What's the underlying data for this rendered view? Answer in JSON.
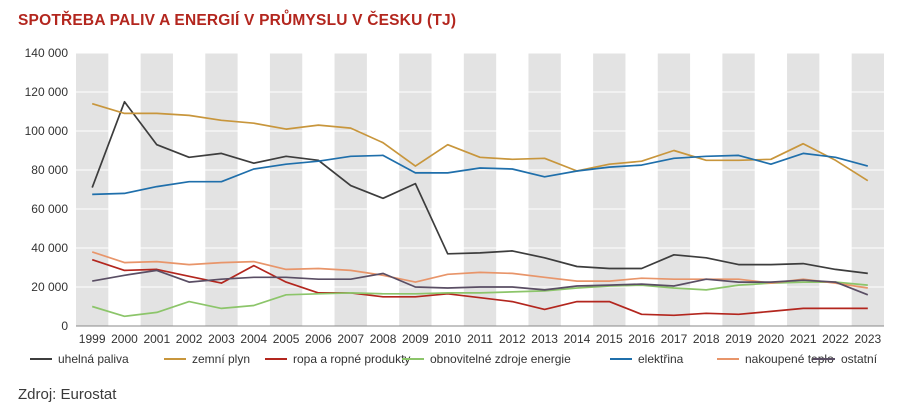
{
  "chart_data": {
    "type": "line",
    "title": "SPOTŘEBA PALIV A ENERGIÍ V PRŮMYSLU V ČESKU (TJ)",
    "xlabel": "",
    "ylabel": "",
    "ylim": [
      0,
      140000
    ],
    "y_ticks": [
      0,
      20000,
      40000,
      60000,
      80000,
      100000,
      120000,
      140000
    ],
    "y_tick_labels": [
      "0",
      "20 000",
      "40 000",
      "60 000",
      "80 000",
      "100 000",
      "120 000",
      "140 000"
    ],
    "categories": [
      "1999",
      "2000",
      "2001",
      "2002",
      "2003",
      "2004",
      "2005",
      "2006",
      "2007",
      "2008",
      "2009",
      "2010",
      "2011",
      "2012",
      "2013",
      "2014",
      "2015",
      "2016",
      "2017",
      "2018",
      "2019",
      "2020",
      "2021",
      "2022",
      "2023"
    ],
    "legend_position": "bottom",
    "background": "alternating gray vertical bands per year",
    "series": [
      {
        "name": "uhelná paliva",
        "color": "#3d3d3d",
        "values": [
          71000,
          115000,
          93000,
          86500,
          88500,
          83500,
          87000,
          85000,
          72000,
          65500,
          73000,
          37000,
          37500,
          38500,
          35000,
          30500,
          29500,
          29500,
          36500,
          35000,
          31500,
          31500,
          32000,
          29000,
          27000
        ]
      },
      {
        "name": "zemní plyn",
        "color": "#c8963c",
        "values": [
          114000,
          109000,
          109000,
          108000,
          105500,
          104000,
          101000,
          103000,
          101500,
          94000,
          82000,
          93000,
          86500,
          85500,
          86000,
          79500,
          83000,
          84500,
          90000,
          85000,
          85000,
          85500,
          93500,
          85000,
          74500
        ]
      },
      {
        "name": "ropa a ropné produkty",
        "color": "#b3261e",
        "values": [
          34000,
          28500,
          29000,
          25500,
          22000,
          31000,
          22500,
          17000,
          17000,
          15000,
          15000,
          16500,
          14500,
          12500,
          8500,
          12500,
          12500,
          6000,
          5500,
          6500,
          6000,
          7500,
          9000,
          9000,
          9000
        ]
      },
      {
        "name": "obnovitelné zdroje energie",
        "color": "#8cc56a",
        "values": [
          10000,
          5000,
          7000,
          12500,
          9000,
          10500,
          16000,
          16500,
          17000,
          16500,
          16500,
          17000,
          17000,
          17500,
          18000,
          19500,
          20500,
          21000,
          19500,
          18500,
          21000,
          22000,
          22500,
          22500,
          21000
        ]
      },
      {
        "name": "elektřina",
        "color": "#1f6fab",
        "values": [
          67500,
          68000,
          71500,
          74000,
          74000,
          80500,
          83000,
          84500,
          87000,
          87500,
          78500,
          78500,
          81000,
          80500,
          76500,
          79500,
          81500,
          82500,
          86000,
          87000,
          87500,
          83000,
          88500,
          86500,
          82000
        ]
      },
      {
        "name": "nakoupené teplo",
        "color": "#e8956a",
        "values": [
          38000,
          32500,
          33000,
          31500,
          32500,
          33000,
          29000,
          29500,
          28500,
          26000,
          22500,
          26500,
          27500,
          27000,
          25000,
          23000,
          23000,
          24500,
          24000,
          24000,
          24000,
          22000,
          24000,
          22000,
          19500
        ]
      },
      {
        "name": "ostatní",
        "color": "#5a4e64",
        "values": [
          23000,
          26000,
          28500,
          22500,
          24000,
          25000,
          25000,
          24000,
          24000,
          27000,
          20000,
          19500,
          20000,
          20000,
          18500,
          20500,
          21000,
          21500,
          20500,
          24000,
          22500,
          22500,
          23500,
          22500,
          16000
        ]
      }
    ]
  },
  "source": "Zdroj: Eurostat"
}
